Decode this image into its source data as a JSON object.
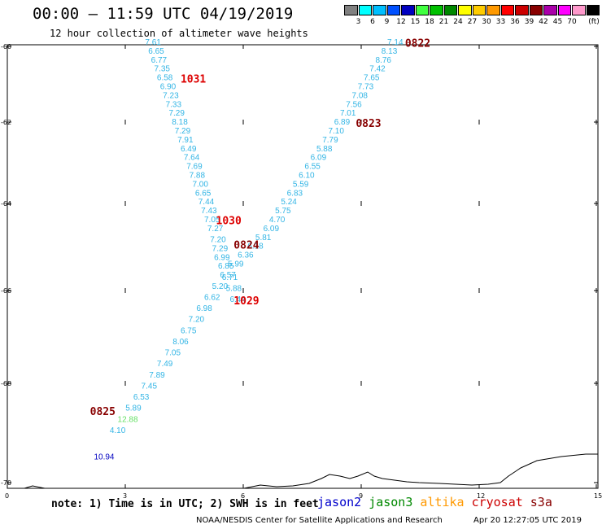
{
  "header": {
    "title": "00:00 – 11:59 UTC 04/19/2019",
    "subtitle": "12 hour collection of altimeter wave heights"
  },
  "colorbar": {
    "unit": "(ft)",
    "bins": [
      {
        "color": "#808080",
        "label": ""
      },
      {
        "color": "#00ffff",
        "label": "3"
      },
      {
        "color": "#00bfff",
        "label": "6"
      },
      {
        "color": "#0050ff",
        "label": "9"
      },
      {
        "color": "#0000c0",
        "label": "12"
      },
      {
        "color": "#40ff40",
        "label": "15"
      },
      {
        "color": "#00c000",
        "label": "18"
      },
      {
        "color": "#008800",
        "label": "21"
      },
      {
        "color": "#ffff00",
        "label": "24"
      },
      {
        "color": "#ffcc00",
        "label": "27"
      },
      {
        "color": "#ff9900",
        "label": "30"
      },
      {
        "color": "#ff0000",
        "label": "33"
      },
      {
        "color": "#cc0000",
        "label": "36"
      },
      {
        "color": "#880000",
        "label": "39"
      },
      {
        "color": "#aa00aa",
        "label": "42"
      },
      {
        "color": "#ff00ff",
        "label": "45"
      },
      {
        "color": "#ff99cc",
        "label": "70"
      },
      {
        "color": "#000000",
        "label": ""
      }
    ]
  },
  "axes": {
    "lat_labels": [
      "-60",
      "-62",
      "-64",
      "-66",
      "-68",
      "-70"
    ],
    "lon_labels": [
      "0",
      "3",
      "6",
      "9",
      "12",
      "15"
    ]
  },
  "chart_data": {
    "type": "scatter",
    "x_axis": "longitude",
    "y_axis": "latitude",
    "xlim": [
      0,
      15
    ],
    "ylim": [
      -70,
      -60
    ],
    "tracks": [
      {
        "name": "track-a",
        "color": "#33b5e5",
        "points": [
          {
            "v": "7.61",
            "lon": 3.5,
            "lat": -60.0
          },
          {
            "v": "6.65",
            "lon": 3.58,
            "lat": -60.2
          },
          {
            "v": "6.77",
            "lon": 3.65,
            "lat": -60.4
          },
          {
            "v": "7.35",
            "lon": 3.73,
            "lat": -60.6
          },
          {
            "v": "6.58",
            "lon": 3.8,
            "lat": -60.8
          },
          {
            "v": "6.90",
            "lon": 3.88,
            "lat": -61.0
          },
          {
            "v": "7.23",
            "lon": 3.95,
            "lat": -61.2
          },
          {
            "v": "7.33",
            "lon": 4.02,
            "lat": -61.4
          },
          {
            "v": "7.29",
            "lon": 4.1,
            "lat": -61.6
          },
          {
            "v": "8.18",
            "lon": 4.18,
            "lat": -61.8
          },
          {
            "v": "7.29",
            "lon": 4.25,
            "lat": -62.0
          },
          {
            "v": "7.91",
            "lon": 4.32,
            "lat": -62.2
          },
          {
            "v": "6.49",
            "lon": 4.4,
            "lat": -62.4
          },
          {
            "v": "7.64",
            "lon": 4.48,
            "lat": -62.6
          },
          {
            "v": "7.69",
            "lon": 4.55,
            "lat": -62.8
          },
          {
            "v": "7.88",
            "lon": 4.62,
            "lat": -63.0
          },
          {
            "v": "7.00",
            "lon": 4.7,
            "lat": -63.2
          },
          {
            "v": "6.65",
            "lon": 4.77,
            "lat": -63.4
          },
          {
            "v": "7.44",
            "lon": 4.85,
            "lat": -63.6
          },
          {
            "v": "7.43",
            "lon": 4.92,
            "lat": -63.8
          },
          {
            "v": "7.05",
            "lon": 5.0,
            "lat": -64.0
          },
          {
            "v": "7.27",
            "lon": 5.08,
            "lat": -64.2
          },
          {
            "v": "7.20",
            "lon": 5.15,
            "lat": -64.45
          },
          {
            "v": "7.29",
            "lon": 5.2,
            "lat": -64.65
          },
          {
            "v": "6.99",
            "lon": 5.25,
            "lat": -64.85
          },
          {
            "v": "6.85",
            "lon": 5.35,
            "lat": -65.05
          },
          {
            "v": "6.71",
            "lon": 5.45,
            "lat": -65.3
          },
          {
            "v": "5.88",
            "lon": 5.55,
            "lat": -65.55
          },
          {
            "v": "6.44",
            "lon": 5.65,
            "lat": -65.8
          }
        ]
      },
      {
        "name": "track-b",
        "color": "#33b5e5",
        "points": [
          {
            "v": "7.14",
            "lon": 9.65,
            "lat": -60.0
          },
          {
            "v": "8.13",
            "lon": 9.5,
            "lat": -60.2
          },
          {
            "v": "8.76",
            "lon": 9.35,
            "lat": -60.4
          },
          {
            "v": "7.42",
            "lon": 9.2,
            "lat": -60.6
          },
          {
            "v": "7.65",
            "lon": 9.05,
            "lat": -60.8
          },
          {
            "v": "7.73",
            "lon": 8.9,
            "lat": -61.0
          },
          {
            "v": "7.08",
            "lon": 8.75,
            "lat": -61.2
          },
          {
            "v": "7.56",
            "lon": 8.6,
            "lat": -61.4
          },
          {
            "v": "7.01",
            "lon": 8.45,
            "lat": -61.6
          },
          {
            "v": "6.89",
            "lon": 8.3,
            "lat": -61.8
          },
          {
            "v": "7.10",
            "lon": 8.15,
            "lat": -62.0
          },
          {
            "v": "7.79",
            "lon": 8.0,
            "lat": -62.2
          },
          {
            "v": "5.88",
            "lon": 7.85,
            "lat": -62.4
          },
          {
            "v": "6.09",
            "lon": 7.7,
            "lat": -62.6
          },
          {
            "v": "6.55",
            "lon": 7.55,
            "lat": -62.8
          },
          {
            "v": "6.10",
            "lon": 7.4,
            "lat": -63.0
          },
          {
            "v": "5.59",
            "lon": 7.25,
            "lat": -63.2
          },
          {
            "v": "6.83",
            "lon": 7.1,
            "lat": -63.4
          },
          {
            "v": "5.24",
            "lon": 6.95,
            "lat": -63.6
          },
          {
            "v": "5.75",
            "lon": 6.8,
            "lat": -63.8
          },
          {
            "v": "4.70",
            "lon": 6.65,
            "lat": -64.0
          },
          {
            "v": "6.09",
            "lon": 6.5,
            "lat": -64.2
          },
          {
            "v": "5.81",
            "lon": 6.3,
            "lat": -64.4
          },
          {
            "v": "6.18",
            "lon": 6.1,
            "lat": -64.6
          },
          {
            "v": "6.36",
            "lon": 5.85,
            "lat": -64.8
          },
          {
            "v": "5.99",
            "lon": 5.6,
            "lat": -65.0
          },
          {
            "v": "6.57",
            "lon": 5.4,
            "lat": -65.25
          },
          {
            "v": "5.20",
            "lon": 5.2,
            "lat": -65.5
          },
          {
            "v": "6.62",
            "lon": 5.0,
            "lat": -65.75
          },
          {
            "v": "6.98",
            "lon": 4.8,
            "lat": -66.0
          },
          {
            "v": "7.20",
            "lon": 4.6,
            "lat": -66.25
          },
          {
            "v": "6.75",
            "lon": 4.4,
            "lat": -66.5
          },
          {
            "v": "8.06",
            "lon": 4.2,
            "lat": -66.75
          },
          {
            "v": "7.05",
            "lon": 4.0,
            "lat": -67.0
          },
          {
            "v": "7.49",
            "lon": 3.8,
            "lat": -67.25
          },
          {
            "v": "7.89",
            "lon": 3.6,
            "lat": -67.5
          },
          {
            "v": "7.45",
            "lon": 3.4,
            "lat": -67.75
          },
          {
            "v": "6.53",
            "lon": 3.2,
            "lat": -68.0
          },
          {
            "v": "5.89",
            "lon": 3.0,
            "lat": -68.25
          },
          {
            "v": "12.88",
            "lon": 2.8,
            "lat": -68.5,
            "color": "#66e066"
          },
          {
            "v": "4.10",
            "lon": 2.6,
            "lat": -68.75
          },
          {
            "v": "10.94",
            "lon": 2.2,
            "lat": -69.35,
            "color": "#0000c0"
          }
        ]
      }
    ],
    "time_labels": [
      {
        "text": "0822",
        "color": "#880000"
      },
      {
        "text": "1031",
        "color": "#dd0000"
      },
      {
        "text": "0823",
        "color": "#880000"
      },
      {
        "text": "1030",
        "color": "#dd0000"
      },
      {
        "text": "0824",
        "color": "#880000"
      },
      {
        "text": "1029",
        "color": "#dd0000"
      },
      {
        "text": "0825",
        "color": "#880000"
      }
    ]
  },
  "footer": {
    "note": "note: 1) Time is in UTC; 2) SWH is in feet",
    "satellites": [
      {
        "name": "jason2",
        "color": "#0000cc"
      },
      {
        "name": "jason3",
        "color": "#008800"
      },
      {
        "name": "altika",
        "color": "#ff9900"
      },
      {
        "name": "cryosat",
        "color": "#cc0000"
      },
      {
        "name": "s3a",
        "color": "#880000"
      }
    ],
    "credit": "NOAA/NESDIS Center for Satellite Applications and Research",
    "timestamp": "Apr 20 12:27:05 UTC 2019"
  }
}
